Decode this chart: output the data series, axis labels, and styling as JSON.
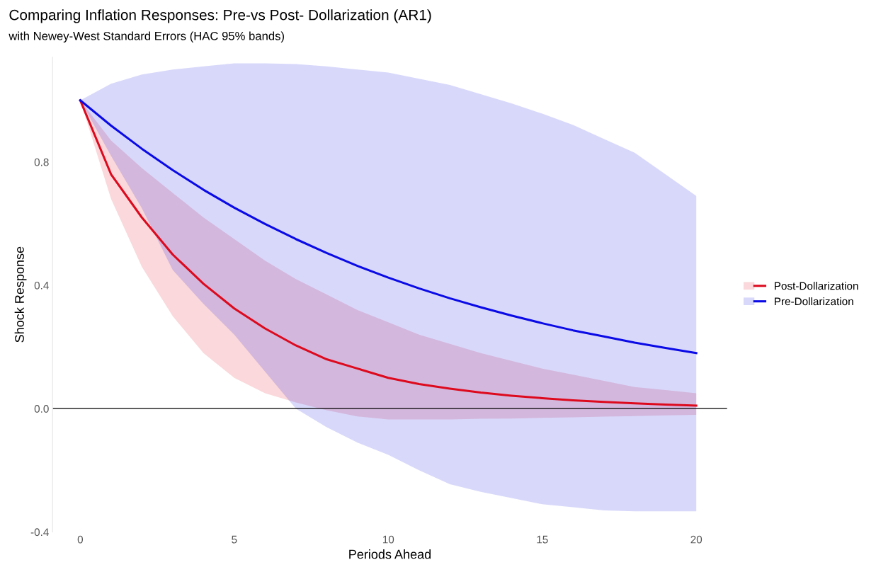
{
  "chart_data": {
    "type": "line",
    "title": "Comparing Inflation Responses: Pre-vs Post- Dollarization (AR1)",
    "subtitle": "with Newey-West Standard Errors (HAC 95% bands)",
    "xlabel": "Periods Ahead",
    "ylabel": "Shock Response",
    "x": [
      0,
      1,
      2,
      3,
      4,
      5,
      6,
      7,
      8,
      9,
      10,
      11,
      12,
      13,
      14,
      15,
      16,
      17,
      18,
      19,
      20
    ],
    "series": [
      {
        "name": "Post-Dollarization",
        "color": "#dd0a1e",
        "values": [
          1,
          0.76,
          0.62,
          0.5,
          0.405,
          0.325,
          0.26,
          0.205,
          0.16,
          0.13,
          0.1,
          0.08,
          0.065,
          0.052,
          0.042,
          0.034,
          0.027,
          0.022,
          0.017,
          0.013,
          0.01
        ],
        "lower": [
          1,
          0.68,
          0.46,
          0.3,
          0.18,
          0.1,
          0.05,
          0.02,
          -0.005,
          -0.025,
          -0.035,
          -0.035,
          -0.035,
          -0.033,
          -0.032,
          -0.03,
          -0.028,
          -0.026,
          -0.024,
          -0.022,
          -0.02
        ],
        "upper": [
          1,
          0.87,
          0.78,
          0.7,
          0.62,
          0.55,
          0.48,
          0.42,
          0.37,
          0.32,
          0.28,
          0.24,
          0.21,
          0.18,
          0.155,
          0.13,
          0.11,
          0.09,
          0.07,
          0.06,
          0.05
        ]
      },
      {
        "name": "Pre-Dollarization",
        "color": "#0a0ae6",
        "values": [
          1,
          0.918,
          0.843,
          0.774,
          0.71,
          0.652,
          0.599,
          0.55,
          0.505,
          0.463,
          0.425,
          0.39,
          0.358,
          0.329,
          0.302,
          0.277,
          0.254,
          0.234,
          0.214,
          0.197,
          0.18
        ],
        "lower": [
          1,
          0.82,
          0.65,
          0.45,
          0.34,
          0.24,
          0.12,
          0.0,
          -0.06,
          -0.11,
          -0.15,
          -0.2,
          -0.245,
          -0.27,
          -0.29,
          -0.31,
          -0.32,
          -0.33,
          -0.333,
          -0.333,
          -0.333
        ],
        "upper": [
          1,
          1.054,
          1.084,
          1.1,
          1.11,
          1.12,
          1.12,
          1.118,
          1.11,
          1.1,
          1.09,
          1.07,
          1.05,
          1.02,
          0.99,
          0.957,
          0.92,
          0.875,
          0.83,
          0.76,
          0.69
        ]
      }
    ],
    "xlim": [
      -0.9,
      21
    ],
    "ylim": [
      -0.4,
      1.14
    ],
    "xticks": [
      0,
      5,
      10,
      15,
      20
    ],
    "yticks": [
      {
        "value": -0.4,
        "label": "-0.4"
      },
      {
        "value": 0.0,
        "label": "0.0"
      },
      {
        "value": 0.4,
        "label": "0.4"
      },
      {
        "value": 0.8,
        "label": "0.8"
      }
    ],
    "ref_lines": [
      {
        "axis": "y",
        "value": 0.0,
        "color": "#000000"
      }
    ],
    "legend": "right",
    "grid": false
  }
}
